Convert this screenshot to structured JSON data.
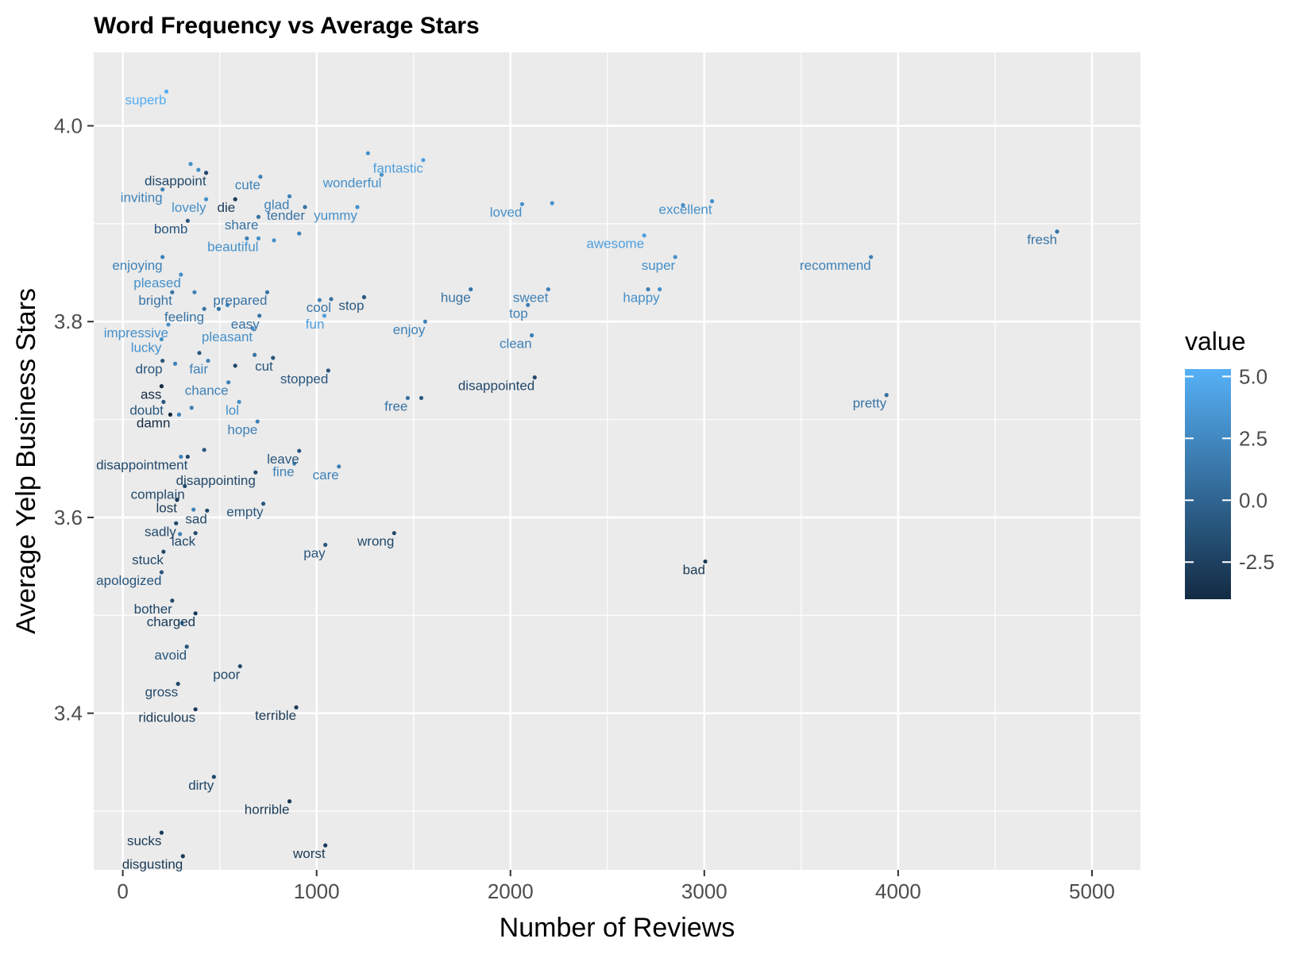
{
  "chart_data": {
    "type": "scatter",
    "title": "Word Frequency vs Average Stars",
    "xlabel": "Number of Reviews",
    "ylabel": "Average Yelp Business Stars",
    "xlim": [
      -150,
      5250
    ],
    "ylim": [
      3.24,
      4.075
    ],
    "x_ticks": [
      0,
      1000,
      2000,
      3000,
      4000,
      5000
    ],
    "x_tick_labels": [
      "0",
      "1000",
      "2000",
      "3000",
      "4000",
      "5000"
    ],
    "y_ticks": [
      3.4,
      3.6,
      3.8,
      4.0
    ],
    "y_tick_labels": [
      "3.4",
      "3.6",
      "3.8",
      "4.0"
    ],
    "grid": true,
    "legend": {
      "title": "value",
      "position": "right",
      "type": "colorbar",
      "range": [
        -4,
        5.3
      ],
      "ticks": [
        5.0,
        2.5,
        0.0,
        -2.5
      ],
      "tick_labels": [
        "5.0",
        "2.5",
        "0.0",
        "-2.5"
      ],
      "color_low": "#132B43",
      "color_high": "#56B1F7"
    },
    "colors": {
      "panel_background": "#EBEBEB",
      "grid": "#FFFFFF",
      "low": "#132B43",
      "high": "#56B1F7"
    },
    "points": [
      {
        "label": "superb",
        "x": 225,
        "y": 4.035,
        "value": 5
      },
      {
        "label": "disappoint",
        "x": 430,
        "y": 3.952,
        "value": -2
      },
      {
        "label": "cute",
        "x": 710,
        "y": 3.948,
        "value": 2
      },
      {
        "label": "wonderful",
        "x": 1335,
        "y": 3.95,
        "value": 3
      },
      {
        "label": "fantastic",
        "x": 1550,
        "y": 3.965,
        "value": 4
      },
      {
        "label": "inviting",
        "x": 205,
        "y": 3.935,
        "value": 2
      },
      {
        "label": "lovely",
        "x": 430,
        "y": 3.925,
        "value": 3
      },
      {
        "label": "die",
        "x": 580,
        "y": 3.925,
        "value": -3
      },
      {
        "label": "glad",
        "x": 860,
        "y": 3.928,
        "value": 2
      },
      {
        "label": "tender",
        "x": 940,
        "y": 3.917,
        "value": 1
      },
      {
        "label": "yummy",
        "x": 1210,
        "y": 3.917,
        "value": 3
      },
      {
        "label": "loved",
        "x": 2060,
        "y": 3.92,
        "value": 3
      },
      {
        "label": "excellent",
        "x": 3040,
        "y": 3.923,
        "value": 3
      },
      {
        "label": "bomb",
        "x": 335,
        "y": 3.903,
        "value": -1
      },
      {
        "label": "share",
        "x": 700,
        "y": 3.907,
        "value": 1
      },
      {
        "label": "beautiful",
        "x": 700,
        "y": 3.885,
        "value": 3
      },
      {
        "label": "awesome",
        "x": 2690,
        "y": 3.888,
        "value": 4
      },
      {
        "label": "fresh",
        "x": 4820,
        "y": 3.892,
        "value": 1
      },
      {
        "label": "enjoying",
        "x": 205,
        "y": 3.866,
        "value": 2
      },
      {
        "label": "super",
        "x": 2850,
        "y": 3.866,
        "value": 3
      },
      {
        "label": "recommend",
        "x": 3860,
        "y": 3.866,
        "value": 2
      },
      {
        "label": "pleased",
        "x": 300,
        "y": 3.848,
        "value": 3
      },
      {
        "label": "bright",
        "x": 255,
        "y": 3.83,
        "value": 1
      },
      {
        "label": "prepared",
        "x": 745,
        "y": 3.83,
        "value": 1
      },
      {
        "label": "cool",
        "x": 1075,
        "y": 3.823,
        "value": 1
      },
      {
        "label": "stop",
        "x": 1245,
        "y": 3.825,
        "value": -1
      },
      {
        "label": "huge",
        "x": 1795,
        "y": 3.833,
        "value": 1
      },
      {
        "label": "sweet",
        "x": 2195,
        "y": 3.833,
        "value": 2
      },
      {
        "label": "happy",
        "x": 2770,
        "y": 3.833,
        "value": 3
      },
      {
        "label": "top",
        "x": 2090,
        "y": 3.817,
        "value": 2
      },
      {
        "label": "feeling",
        "x": 420,
        "y": 3.813,
        "value": 1
      },
      {
        "label": "easy",
        "x": 705,
        "y": 3.806,
        "value": 1
      },
      {
        "label": "fun",
        "x": 1040,
        "y": 3.806,
        "value": 4
      },
      {
        "label": "enjoy",
        "x": 1560,
        "y": 3.8,
        "value": 2
      },
      {
        "label": "impressive",
        "x": 235,
        "y": 3.797,
        "value": 3
      },
      {
        "label": "pleasant",
        "x": 670,
        "y": 3.793,
        "value": 3
      },
      {
        "label": "lucky",
        "x": 200,
        "y": 3.782,
        "value": 3
      },
      {
        "label": "clean",
        "x": 2110,
        "y": 3.786,
        "value": 2
      },
      {
        "label": "drop",
        "x": 205,
        "y": 3.76,
        "value": -1
      },
      {
        "label": "fair",
        "x": 440,
        "y": 3.76,
        "value": 2
      },
      {
        "label": "cut",
        "x": 775,
        "y": 3.763,
        "value": -1
      },
      {
        "label": "stopped",
        "x": 1060,
        "y": 3.75,
        "value": -1
      },
      {
        "label": "disappointed",
        "x": 2125,
        "y": 3.743,
        "value": -2
      },
      {
        "label": "ass",
        "x": 200,
        "y": 3.734,
        "value": -4
      },
      {
        "label": "chance",
        "x": 545,
        "y": 3.738,
        "value": 2
      },
      {
        "label": "doubt",
        "x": 210,
        "y": 3.718,
        "value": -1
      },
      {
        "label": "lol",
        "x": 600,
        "y": 3.718,
        "value": 3
      },
      {
        "label": "free",
        "x": 1470,
        "y": 3.722,
        "value": 1
      },
      {
        "label": "pretty",
        "x": 3940,
        "y": 3.725,
        "value": 1
      },
      {
        "label": "damn",
        "x": 245,
        "y": 3.705,
        "value": -4
      },
      {
        "label": "hope",
        "x": 695,
        "y": 3.698,
        "value": 2
      },
      {
        "label": "disappointment",
        "x": 335,
        "y": 3.662,
        "value": -2
      },
      {
        "label": "leave",
        "x": 910,
        "y": 3.668,
        "value": -1
      },
      {
        "label": "fine",
        "x": 885,
        "y": 3.655,
        "value": 2
      },
      {
        "label": "care",
        "x": 1115,
        "y": 3.652,
        "value": 2
      },
      {
        "label": "disappointing",
        "x": 685,
        "y": 3.646,
        "value": -2
      },
      {
        "label": "complain",
        "x": 320,
        "y": 3.632,
        "value": -2
      },
      {
        "label": "lost",
        "x": 280,
        "y": 3.618,
        "value": -3
      },
      {
        "label": "empty",
        "x": 725,
        "y": 3.614,
        "value": -1
      },
      {
        "label": "sadly",
        "x": 275,
        "y": 3.594,
        "value": -2
      },
      {
        "label": "sad",
        "x": 435,
        "y": 3.607,
        "value": -2
      },
      {
        "label": "wrong",
        "x": 1400,
        "y": 3.584,
        "value": -2
      },
      {
        "label": "lack",
        "x": 375,
        "y": 3.584,
        "value": -2
      },
      {
        "label": "pay",
        "x": 1045,
        "y": 3.572,
        "value": -1
      },
      {
        "label": "stuck",
        "x": 210,
        "y": 3.565,
        "value": -2
      },
      {
        "label": "bad",
        "x": 3005,
        "y": 3.555,
        "value": -3
      },
      {
        "label": "apologized",
        "x": 200,
        "y": 3.544,
        "value": -1
      },
      {
        "label": "bother",
        "x": 255,
        "y": 3.515,
        "value": -2
      },
      {
        "label": "charged",
        "x": 375,
        "y": 3.502,
        "value": -3
      },
      {
        "label": "avoid",
        "x": 330,
        "y": 3.468,
        "value": -1
      },
      {
        "label": "poor",
        "x": 605,
        "y": 3.448,
        "value": -2
      },
      {
        "label": "gross",
        "x": 285,
        "y": 3.43,
        "value": -2
      },
      {
        "label": "ridiculous",
        "x": 375,
        "y": 3.404,
        "value": -3
      },
      {
        "label": "terrible",
        "x": 895,
        "y": 3.406,
        "value": -3
      },
      {
        "label": "dirty",
        "x": 470,
        "y": 3.335,
        "value": -2
      },
      {
        "label": "horrible",
        "x": 860,
        "y": 3.31,
        "value": -3
      },
      {
        "label": "sucks",
        "x": 200,
        "y": 3.278,
        "value": -3
      },
      {
        "label": "worst",
        "x": 1045,
        "y": 3.265,
        "value": -3
      },
      {
        "label": "disgusting",
        "x": 310,
        "y": 3.254,
        "value": -3
      }
    ],
    "unlabeled_points": [
      {
        "x": 1265,
        "y": 3.972,
        "value": 3
      },
      {
        "x": 350,
        "y": 3.961,
        "value": 3
      },
      {
        "x": 390,
        "y": 3.955,
        "value": 3
      },
      {
        "x": 2215,
        "y": 3.921,
        "value": 3
      },
      {
        "x": 2890,
        "y": 3.919,
        "value": 3
      },
      {
        "x": 780,
        "y": 3.883,
        "value": 3
      },
      {
        "x": 910,
        "y": 3.89,
        "value": 2
      },
      {
        "x": 640,
        "y": 3.885,
        "value": 2
      },
      {
        "x": 2710,
        "y": 3.833,
        "value": 2
      },
      {
        "x": 370,
        "y": 3.83,
        "value": 2
      },
      {
        "x": 495,
        "y": 3.813,
        "value": 1
      },
      {
        "x": 540,
        "y": 3.817,
        "value": 2
      },
      {
        "x": 1015,
        "y": 3.822,
        "value": 2
      },
      {
        "x": 270,
        "y": 3.757,
        "value": 2
      },
      {
        "x": 395,
        "y": 3.768,
        "value": -1
      },
      {
        "x": 580,
        "y": 3.755,
        "value": -2
      },
      {
        "x": 680,
        "y": 3.766,
        "value": 1
      },
      {
        "x": 1540,
        "y": 3.722,
        "value": -1
      },
      {
        "x": 355,
        "y": 3.712,
        "value": 2
      },
      {
        "x": 290,
        "y": 3.705,
        "value": 2
      },
      {
        "x": 420,
        "y": 3.669,
        "value": -1
      },
      {
        "x": 300,
        "y": 3.662,
        "value": 2
      },
      {
        "x": 365,
        "y": 3.608,
        "value": 2
      },
      {
        "x": 295,
        "y": 3.583,
        "value": 2
      },
      {
        "x": 305,
        "y": 3.492,
        "value": 2
      }
    ]
  }
}
